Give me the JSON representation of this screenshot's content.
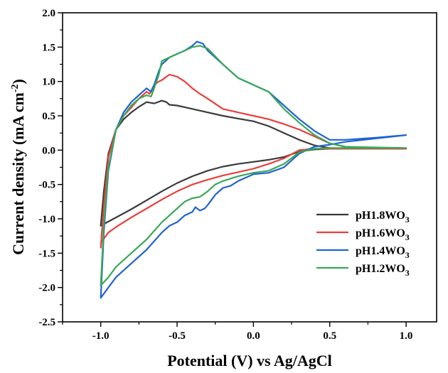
{
  "chart_data": {
    "type": "line",
    "xlabel": "Potential (V) vs Ag/AgCl",
    "ylabel_main": "Current density (mA cm",
    "ylabel_sup": "-2",
    "ylabel_end": ")",
    "xlim": [
      -1.25,
      1.2
    ],
    "ylim": [
      -2.5,
      2.0
    ],
    "xticks": [
      -1.0,
      -0.5,
      0.0,
      0.5,
      1.0
    ],
    "yticks": [
      -2.5,
      -2.0,
      -1.5,
      -1.0,
      -0.5,
      0.0,
      0.5,
      1.0,
      1.5,
      2.0
    ],
    "tick_labels_x": [
      "-1.0",
      "-0.5",
      "0.0",
      "0.5",
      "1.0"
    ],
    "tick_labels_y": [
      "-2.5",
      "-2.0",
      "-1.5",
      "-1.0",
      "-0.5",
      "0.0",
      "0.5",
      "1.0",
      "1.5",
      "2.0"
    ],
    "grid": false,
    "legend_position": "bottom-right",
    "series": [
      {
        "name_main": "pH1.8WO",
        "name_sub": "3",
        "color": "#3a3a3a",
        "x": [
          -1.0,
          -0.98,
          -0.95,
          -0.9,
          -0.85,
          -0.8,
          -0.75,
          -0.7,
          -0.65,
          -0.6,
          -0.57,
          -0.55,
          -0.5,
          -0.4,
          -0.3,
          -0.2,
          -0.1,
          0.0,
          0.1,
          0.2,
          0.3,
          0.4,
          0.5,
          0.6,
          0.8,
          1.0,
          1.0,
          0.8,
          0.6,
          0.5,
          0.4,
          0.3,
          0.2,
          0.1,
          0.0,
          -0.1,
          -0.2,
          -0.3,
          -0.4,
          -0.5,
          -0.6,
          -0.7,
          -0.8,
          -0.9,
          -0.95,
          -1.0
        ],
        "y": [
          -1.1,
          -0.6,
          -0.05,
          0.3,
          0.45,
          0.55,
          0.63,
          0.7,
          0.68,
          0.72,
          0.7,
          0.66,
          0.65,
          0.6,
          0.55,
          0.5,
          0.46,
          0.42,
          0.35,
          0.25,
          0.15,
          0.07,
          0.03,
          0.02,
          0.02,
          0.02,
          0.02,
          0.02,
          0.02,
          0.02,
          0.01,
          -0.02,
          -0.1,
          -0.14,
          -0.17,
          -0.2,
          -0.24,
          -0.3,
          -0.38,
          -0.48,
          -0.6,
          -0.73,
          -0.86,
          -0.98,
          -1.04,
          -1.1
        ]
      },
      {
        "name_main": "pH1.6WO",
        "name_sub": "3",
        "color": "#e8403c",
        "x": [
          -1.0,
          -0.98,
          -0.95,
          -0.9,
          -0.85,
          -0.8,
          -0.75,
          -0.7,
          -0.68,
          -0.65,
          -0.62,
          -0.6,
          -0.55,
          -0.5,
          -0.45,
          -0.4,
          -0.35,
          -0.3,
          -0.2,
          -0.1,
          0.0,
          0.1,
          0.2,
          0.3,
          0.4,
          0.5,
          0.6,
          0.8,
          1.0,
          1.0,
          0.8,
          0.6,
          0.5,
          0.4,
          0.3,
          0.2,
          0.1,
          0.0,
          -0.1,
          -0.2,
          -0.3,
          -0.4,
          -0.5,
          -0.6,
          -0.7,
          -0.8,
          -0.9,
          -0.95,
          -1.0
        ],
        "y": [
          -1.42,
          -0.8,
          -0.1,
          0.3,
          0.5,
          0.62,
          0.75,
          0.85,
          0.82,
          0.95,
          1.0,
          1.02,
          1.1,
          1.07,
          1.0,
          0.9,
          0.82,
          0.75,
          0.6,
          0.55,
          0.5,
          0.45,
          0.38,
          0.3,
          0.2,
          0.1,
          0.05,
          0.02,
          0.02,
          0.02,
          0.02,
          0.02,
          0.02,
          0.02,
          0.0,
          -0.12,
          -0.2,
          -0.27,
          -0.32,
          -0.37,
          -0.43,
          -0.5,
          -0.6,
          -0.72,
          -0.85,
          -0.98,
          -1.12,
          -1.2,
          -1.35
        ]
      },
      {
        "name_main": "pH1.4WO",
        "name_sub": "3",
        "color": "#1f64d1",
        "x": [
          -1.0,
          -0.98,
          -0.95,
          -0.9,
          -0.85,
          -0.8,
          -0.75,
          -0.7,
          -0.67,
          -0.65,
          -0.62,
          -0.6,
          -0.55,
          -0.5,
          -0.45,
          -0.4,
          -0.37,
          -0.33,
          -0.3,
          -0.2,
          -0.1,
          0.0,
          0.1,
          0.2,
          0.3,
          0.4,
          0.5,
          0.6,
          0.8,
          1.0,
          1.0,
          0.8,
          0.6,
          0.5,
          0.4,
          0.35,
          0.3,
          0.25,
          0.2,
          0.1,
          0.0,
          -0.1,
          -0.15,
          -0.2,
          -0.25,
          -0.3,
          -0.32,
          -0.35,
          -0.38,
          -0.4,
          -0.45,
          -0.5,
          -0.55,
          -0.6,
          -0.7,
          -0.8,
          -0.9,
          -0.95,
          -1.0
        ],
        "y": [
          -2.15,
          -1.2,
          -0.3,
          0.3,
          0.55,
          0.7,
          0.8,
          0.9,
          0.85,
          0.95,
          1.15,
          1.25,
          1.35,
          1.4,
          1.45,
          1.52,
          1.58,
          1.55,
          1.45,
          1.25,
          1.05,
          0.95,
          0.85,
          0.65,
          0.45,
          0.28,
          0.15,
          0.15,
          0.18,
          0.22,
          0.22,
          0.17,
          0.12,
          0.08,
          0.05,
          0.0,
          -0.05,
          -0.15,
          -0.25,
          -0.33,
          -0.35,
          -0.45,
          -0.52,
          -0.55,
          -0.65,
          -0.8,
          -0.85,
          -0.88,
          -0.83,
          -0.9,
          -0.95,
          -1.05,
          -1.1,
          -1.2,
          -1.45,
          -1.65,
          -1.85,
          -2.0,
          -2.15
        ]
      },
      {
        "name_main": "pH1.2WO",
        "name_sub": "3",
        "color": "#3aa85a",
        "x": [
          -1.0,
          -0.98,
          -0.95,
          -0.9,
          -0.85,
          -0.8,
          -0.75,
          -0.7,
          -0.67,
          -0.65,
          -0.62,
          -0.6,
          -0.55,
          -0.5,
          -0.45,
          -0.4,
          -0.35,
          -0.3,
          -0.2,
          -0.1,
          0.0,
          0.1,
          0.2,
          0.3,
          0.4,
          0.5,
          0.6,
          0.8,
          1.0,
          1.0,
          0.8,
          0.6,
          0.5,
          0.4,
          0.3,
          0.2,
          0.1,
          0.0,
          -0.1,
          -0.2,
          -0.25,
          -0.3,
          -0.35,
          -0.4,
          -0.45,
          -0.5,
          -0.55,
          -0.6,
          -0.7,
          -0.8,
          -0.9,
          -0.95,
          -1.0
        ],
        "y": [
          -1.97,
          -1.1,
          -0.25,
          0.3,
          0.5,
          0.65,
          0.75,
          0.8,
          0.78,
          0.9,
          1.1,
          1.3,
          1.35,
          1.4,
          1.45,
          1.5,
          1.52,
          1.48,
          1.25,
          1.05,
          0.95,
          0.85,
          0.6,
          0.4,
          0.22,
          0.1,
          0.05,
          0.04,
          0.03,
          0.03,
          0.03,
          0.03,
          0.03,
          0.02,
          -0.03,
          -0.2,
          -0.3,
          -0.33,
          -0.38,
          -0.45,
          -0.5,
          -0.6,
          -0.68,
          -0.7,
          -0.75,
          -0.85,
          -0.95,
          -1.05,
          -1.3,
          -1.5,
          -1.7,
          -1.85,
          -1.97
        ]
      }
    ]
  }
}
